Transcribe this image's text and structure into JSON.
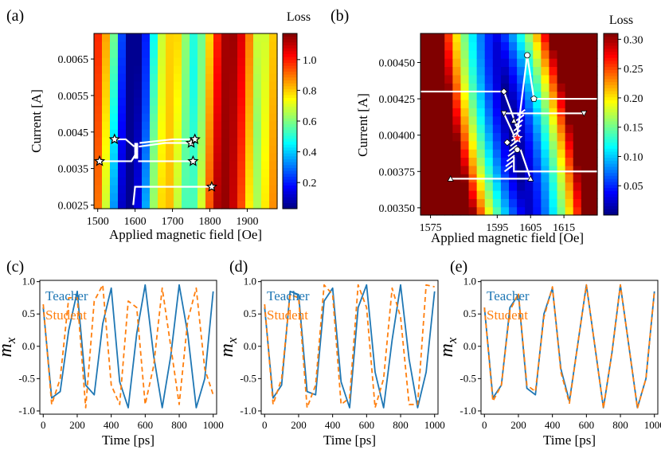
{
  "chart_data": [
    {
      "panel": "(a)",
      "type": "heatmap",
      "xlabel": "Applied magnetic field [Oe]",
      "ylabel": "Current [A]",
      "colorbar_label": "Loss",
      "x_ticks": [
        1500,
        1600,
        1700,
        1800,
        1900
      ],
      "y_ticks": [
        0.0025,
        0.0035,
        0.0045,
        0.0055,
        0.0065
      ],
      "xlim": [
        1490,
        1980
      ],
      "ylim": [
        0.0024,
        0.0072
      ],
      "colorbar_ticks": [
        0.2,
        0.4,
        0.6,
        0.8,
        1.0
      ],
      "colorbar_range": [
        0.03,
        1.17
      ],
      "loss_vs_field": [
        [
          1490,
          0.99
        ],
        [
          1510,
          0.87
        ],
        [
          1530,
          0.65
        ],
        [
          1550,
          0.3
        ],
        [
          1575,
          0.05
        ],
        [
          1600,
          0.05
        ],
        [
          1625,
          0.25
        ],
        [
          1650,
          0.6
        ],
        [
          1675,
          0.78
        ],
        [
          1700,
          0.82
        ],
        [
          1725,
          0.62
        ],
        [
          1750,
          0.48
        ],
        [
          1775,
          0.62
        ],
        [
          1800,
          0.9
        ],
        [
          1825,
          1.12
        ],
        [
          1850,
          1.15
        ],
        [
          1875,
          1.06
        ],
        [
          1900,
          0.85
        ],
        [
          1925,
          0.62
        ],
        [
          1950,
          0.75
        ],
        [
          1980,
          0.9
        ]
      ],
      "start_points": [
        [
          1505,
          0.0037
        ],
        [
          1545,
          0.0043
        ],
        [
          1750,
          0.0042
        ],
        [
          1760,
          0.0043
        ],
        [
          1755,
          0.0037
        ],
        [
          1805,
          0.003
        ]
      ],
      "trajectories": [
        [
          [
            1505,
            0.0037
          ],
          [
            1590,
            0.0037
          ],
          [
            1602,
            0.0039
          ]
        ],
        [
          [
            1545,
            0.0043
          ],
          [
            1575,
            0.0043
          ],
          [
            1598,
            0.0041
          ]
        ],
        [
          [
            1750,
            0.0042
          ],
          [
            1680,
            0.0042
          ],
          [
            1610,
            0.0041
          ]
        ],
        [
          [
            1760,
            0.0043
          ],
          [
            1700,
            0.0043
          ],
          [
            1612,
            0.0042
          ]
        ],
        [
          [
            1755,
            0.0037
          ],
          [
            1680,
            0.0037
          ],
          [
            1608,
            0.0037
          ]
        ],
        [
          [
            1805,
            0.003
          ],
          [
            1700,
            0.003
          ],
          [
            1600,
            0.003
          ],
          [
            1595,
            0.0025
          ]
        ]
      ],
      "cluster": [
        1602,
        0.004
      ]
    },
    {
      "panel": "(b)",
      "type": "heatmap",
      "xlabel": "Applied magnetic field [Oe]",
      "ylabel": "Current [A]",
      "colorbar_label": "Loss",
      "x_ticks": [
        1575,
        1595,
        1605,
        1615
      ],
      "y_ticks": [
        0.0035,
        0.00375,
        0.004,
        0.00425,
        0.0045
      ],
      "x_tick_positions": [
        1575,
        1595,
        1605,
        1615
      ],
      "xlim": [
        1572,
        1625
      ],
      "ylim": [
        0.00345,
        0.0047
      ],
      "colorbar_ticks": [
        0.05,
        0.1,
        0.15,
        0.2,
        0.25,
        0.3
      ],
      "colorbar_range": [
        0.0,
        0.31
      ],
      "valley_center": [
        1600,
        0.004
      ],
      "trajectories": [
        [
          [
            1572,
            0.0043
          ],
          [
            1597,
            0.0043
          ],
          [
            1601,
            0.00405
          ]
        ],
        [
          [
            1604,
            0.00455
          ],
          [
            1601,
            0.004
          ]
        ],
        [
          [
            1604,
            0.00455
          ],
          [
            1606,
            0.00425
          ],
          [
            1625,
            0.00425
          ]
        ],
        [
          [
            1621,
            0.00415
          ],
          [
            1597,
            0.00415
          ],
          [
            1600,
            0.004
          ]
        ],
        [
          [
            1581,
            0.0037
          ],
          [
            1598,
            0.0037
          ],
          [
            1605,
            0.0037
          ],
          [
            1602,
            0.0039
          ]
        ],
        [
          [
            1625,
            0.00375
          ],
          [
            1600,
            0.00375
          ],
          [
            1600,
            0.00385
          ]
        ]
      ],
      "markers": {
        "circle": [
          [
            1604,
            0.00455
          ],
          [
            1601,
            0.0039
          ]
        ],
        "pentagon": [
          [
            1606,
            0.00425
          ]
        ],
        "diamond": [
          [
            1597,
            0.0043
          ],
          [
            1598,
            0.00395
          ]
        ],
        "triangle_down": [
          [
            1621,
            0.00415
          ],
          [
            1597,
            0.00415
          ]
        ],
        "triangle_up": [
          [
            1581,
            0.0037
          ],
          [
            1605,
            0.0037
          ],
          [
            1600,
            0.0041
          ]
        ],
        "star": [
          [
            1601,
            0.00398
          ]
        ]
      }
    },
    {
      "panel": "(c)",
      "type": "line",
      "xlabel": "Time [ps]",
      "ylabel": "m_x",
      "xlim": [
        -20,
        1020
      ],
      "ylim": [
        -1.05,
        1.02
      ],
      "x_ticks": [
        0,
        200,
        400,
        600,
        800,
        1000
      ],
      "y_ticks": [
        -1.0,
        -0.5,
        0.0,
        0.5,
        1.0
      ],
      "legend": [
        "Teacher",
        "Student"
      ],
      "x": [
        0,
        50,
        100,
        150,
        200,
        250,
        300,
        350,
        400,
        450,
        500,
        550,
        600,
        650,
        700,
        750,
        800,
        850,
        900,
        950,
        1000
      ],
      "series": [
        {
          "name": "Teacher",
          "color": "#1f77b4",
          "dash": "",
          "values": [
            0.6,
            -0.8,
            -0.7,
            0.25,
            0.85,
            -0.6,
            -0.75,
            0.35,
            0.9,
            -0.55,
            -0.95,
            0.2,
            0.95,
            -0.15,
            -0.95,
            -0.15,
            0.95,
            0.2,
            -0.95,
            -0.5,
            0.85
          ]
        },
        {
          "name": "Student",
          "color": "#ff7f0e",
          "dash": "6 4",
          "values": [
            0.65,
            -0.9,
            -0.5,
            0.75,
            0.75,
            -0.95,
            0.7,
            0.95,
            -0.6,
            -0.9,
            0.7,
            0.6,
            -0.9,
            -0.3,
            0.9,
            0.0,
            -0.9,
            0.4,
            0.9,
            -0.35,
            -0.75
          ]
        }
      ]
    },
    {
      "panel": "(d)",
      "type": "line",
      "xlabel": "Time [ps]",
      "ylabel": "m_x",
      "xlim": [
        -20,
        1020
      ],
      "ylim": [
        -1.05,
        1.02
      ],
      "x_ticks": [
        0,
        200,
        400,
        600,
        800,
        1000
      ],
      "y_ticks": [
        -1.0,
        -0.5,
        0.0,
        0.5,
        1.0
      ],
      "legend": [
        "Teacher",
        "Student"
      ],
      "x": [
        0,
        50,
        100,
        150,
        200,
        250,
        300,
        350,
        400,
        450,
        500,
        550,
        600,
        650,
        700,
        750,
        800,
        850,
        900,
        950,
        1000
      ],
      "series": [
        {
          "name": "Teacher",
          "color": "#1f77b4",
          "dash": "",
          "values": [
            0.6,
            -0.8,
            -0.6,
            0.85,
            0.8,
            -0.7,
            -0.75,
            0.7,
            0.9,
            -0.55,
            -0.95,
            0.6,
            0.95,
            -0.4,
            -0.95,
            0.1,
            0.95,
            -0.2,
            -0.95,
            -0.4,
            0.85
          ]
        },
        {
          "name": "Student",
          "color": "#ff7f0e",
          "dash": "6 4",
          "values": [
            0.65,
            -0.9,
            -0.5,
            0.8,
            0.75,
            -0.95,
            -0.6,
            0.95,
            0.8,
            -0.9,
            -0.8,
            0.95,
            0.6,
            -0.95,
            -0.5,
            0.9,
            0.45,
            -0.9,
            -0.9,
            0.95,
            0.92
          ]
        }
      ]
    },
    {
      "panel": "(e)",
      "type": "line",
      "xlabel": "Time [ps]",
      "ylabel": "m_x",
      "xlim": [
        -20,
        1020
      ],
      "ylim": [
        -1.05,
        1.02
      ],
      "x_ticks": [
        0,
        200,
        400,
        600,
        800,
        1000
      ],
      "y_ticks": [
        -1.0,
        -0.5,
        0.0,
        0.5,
        1.0
      ],
      "legend": [
        "Teacher",
        "Student"
      ],
      "x": [
        0,
        50,
        100,
        150,
        200,
        250,
        300,
        350,
        400,
        450,
        500,
        550,
        600,
        650,
        700,
        750,
        800,
        850,
        900,
        950,
        1000
      ],
      "series": [
        {
          "name": "Teacher",
          "color": "#1f77b4",
          "dash": "",
          "values": [
            0.6,
            -0.8,
            -0.6,
            0.6,
            0.8,
            -0.65,
            -0.75,
            0.5,
            0.9,
            -0.35,
            -0.85,
            0.05,
            0.95,
            0.0,
            -0.95,
            -0.1,
            0.95,
            0.0,
            -0.95,
            -0.5,
            0.85
          ]
        },
        {
          "name": "Student",
          "color": "#ff7f0e",
          "dash": "6 4",
          "values": [
            0.6,
            -0.85,
            -0.6,
            0.55,
            0.82,
            -0.6,
            -0.7,
            0.45,
            0.92,
            -0.4,
            -0.88,
            0.05,
            0.95,
            0.0,
            -0.96,
            -0.1,
            0.95,
            0.0,
            -0.96,
            -0.5,
            0.85
          ]
        }
      ]
    }
  ]
}
